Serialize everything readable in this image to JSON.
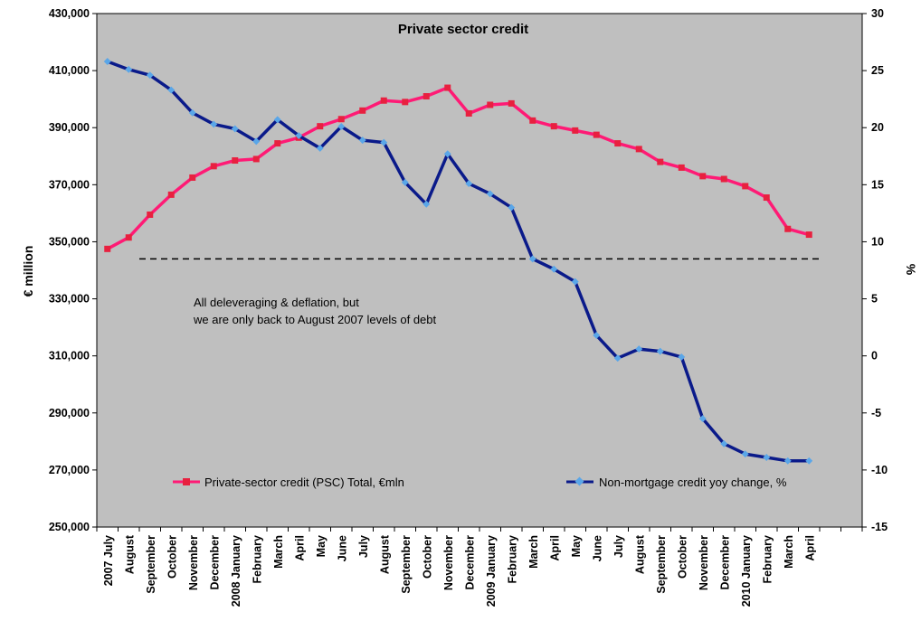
{
  "chart_data": {
    "type": "line",
    "title": "Private sector credit",
    "ylabel_left": "€ million",
    "ylabel_right": "%",
    "ylim_left": [
      250000,
      430000
    ],
    "ylim_right": [
      -15,
      30
    ],
    "yticks_left": [
      "430,000",
      "410,000",
      "390,000",
      "370,000",
      "350,000",
      "330,000",
      "310,000",
      "290,000",
      "270,000",
      "250,000"
    ],
    "yticks_right": [
      "30",
      "25",
      "20",
      "15",
      "10",
      "5",
      "0",
      "-5",
      "-10",
      "-15"
    ],
    "categories": [
      "2007 July",
      "August",
      "September",
      "October",
      "November",
      "December",
      "2008 January",
      "February",
      "March",
      "April",
      "May",
      "June",
      "July",
      "August",
      "September",
      "October",
      "November",
      "December",
      "2009 January",
      "February",
      "March",
      "April",
      "May",
      "June",
      "July",
      "August",
      "September",
      "October",
      "November",
      "December",
      "2010 January",
      "February",
      "March",
      "April"
    ],
    "series": [
      {
        "name": "Private-sector credit (PSC) Total, €mln",
        "axis": "left",
        "color": "#ff1a75",
        "marker": "square",
        "values": [
          347500,
          351500,
          359500,
          366500,
          372500,
          376500,
          378500,
          379000,
          384500,
          386500,
          390500,
          393000,
          396000,
          399500,
          399000,
          401000,
          404000,
          395000,
          398000,
          398500,
          392500,
          390500,
          389000,
          387500,
          384500,
          382500,
          378000,
          376000,
          373000,
          372000,
          369500,
          365500,
          354500,
          352500
        ]
      },
      {
        "name": "Non-mortgage credit yoy change, %",
        "axis": "right",
        "color": "#0a1a8a",
        "marker": "diamond",
        "values": [
          25.8,
          25.1,
          24.6,
          23.3,
          21.3,
          20.3,
          19.9,
          18.8,
          20.7,
          19.3,
          18.2,
          20.1,
          18.9,
          18.7,
          15.2,
          13.3,
          17.7,
          15.1,
          14.2,
          13.0,
          8.5,
          7.6,
          6.5,
          1.8,
          -0.2,
          0.6,
          0.4,
          -0.1,
          -5.5,
          -7.7,
          -8.6,
          -8.9,
          -9.2,
          -9.2
        ]
      }
    ],
    "reference_line": {
      "axis": "left",
      "value": 344000,
      "style": "dashed"
    },
    "annotation": [
      "All deleveraging & deflation, but",
      "we are only back to August 2007 levels of debt"
    ],
    "legend": "bottom",
    "grid": false
  }
}
